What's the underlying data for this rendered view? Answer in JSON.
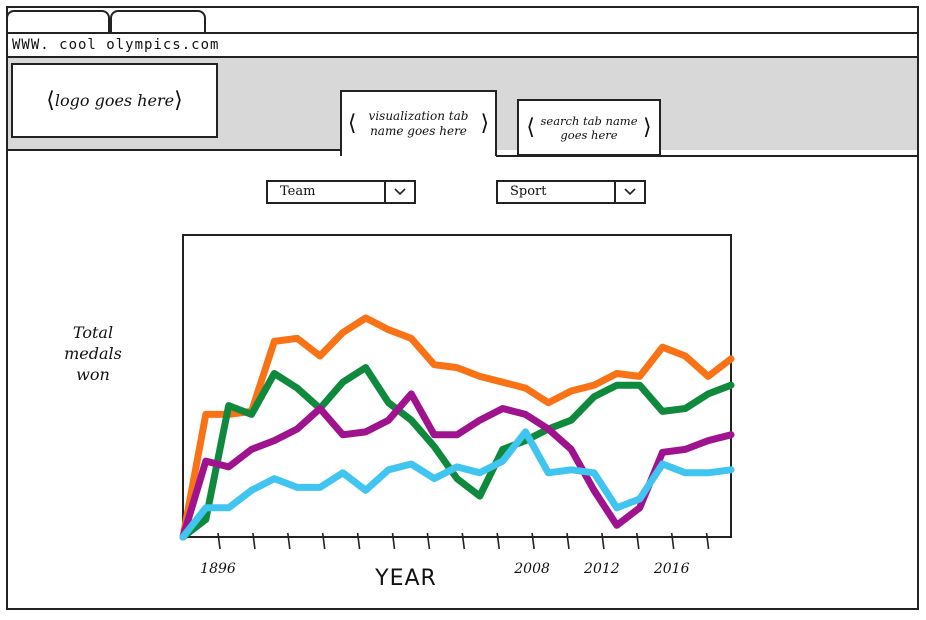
{
  "browser": {
    "url": "WWW. cool olympics.com"
  },
  "header": {
    "logo_text": "logo goes here",
    "tabs": [
      {
        "label": "visualization tab name goes here",
        "active": true
      },
      {
        "label": "search tab name goes here",
        "active": false
      }
    ]
  },
  "filters": {
    "team": {
      "value": "Team"
    },
    "sport": {
      "value": "Sport"
    }
  },
  "colors": {
    "orange": "#f97316",
    "green": "#0f8a3c",
    "purple": "#a0138e",
    "blue": "#3fc5f0",
    "header_band": "#d8d8d8"
  },
  "chart_data": {
    "type": "line",
    "ylabel": "Total\nmedals\nwon",
    "xlabel": "YEAR",
    "x_ticks": [
      "1896",
      "",
      "",
      "",
      "",
      "",
      "",
      "",
      "",
      "2008",
      "",
      "2012",
      "",
      "2016",
      ""
    ],
    "x": [
      0,
      1,
      2,
      3,
      4,
      5,
      6,
      7,
      8,
      9,
      10,
      11,
      12,
      13,
      14,
      15,
      16,
      17,
      18,
      19,
      20,
      21,
      22,
      23,
      24
    ],
    "ylim": [
      0,
      100
    ],
    "series": [
      {
        "color": "orange",
        "values": [
          0,
          42,
          42,
          43,
          67,
          68,
          62,
          70,
          75,
          71,
          68,
          59,
          58,
          55,
          53,
          51,
          46,
          50,
          52,
          56,
          55,
          65,
          62,
          55,
          61
        ]
      },
      {
        "color": "green",
        "values": [
          0,
          6,
          45,
          42,
          56,
          51,
          44,
          53,
          58,
          46,
          40,
          31,
          20,
          14,
          30,
          33,
          37,
          40,
          48,
          52,
          52,
          43,
          44,
          49,
          52
        ]
      },
      {
        "color": "purple",
        "values": [
          0,
          26,
          24,
          30,
          33,
          37,
          44,
          35,
          36,
          40,
          49,
          35,
          35,
          40,
          44,
          42,
          37,
          30,
          16,
          4,
          10,
          29,
          30,
          33,
          35
        ]
      },
      {
        "color": "blue",
        "values": [
          0,
          10,
          10,
          16,
          20,
          17,
          17,
          22,
          16,
          23,
          25,
          20,
          24,
          22,
          26,
          36,
          22,
          23,
          22,
          10,
          13,
          25,
          22,
          22,
          23
        ]
      }
    ]
  }
}
